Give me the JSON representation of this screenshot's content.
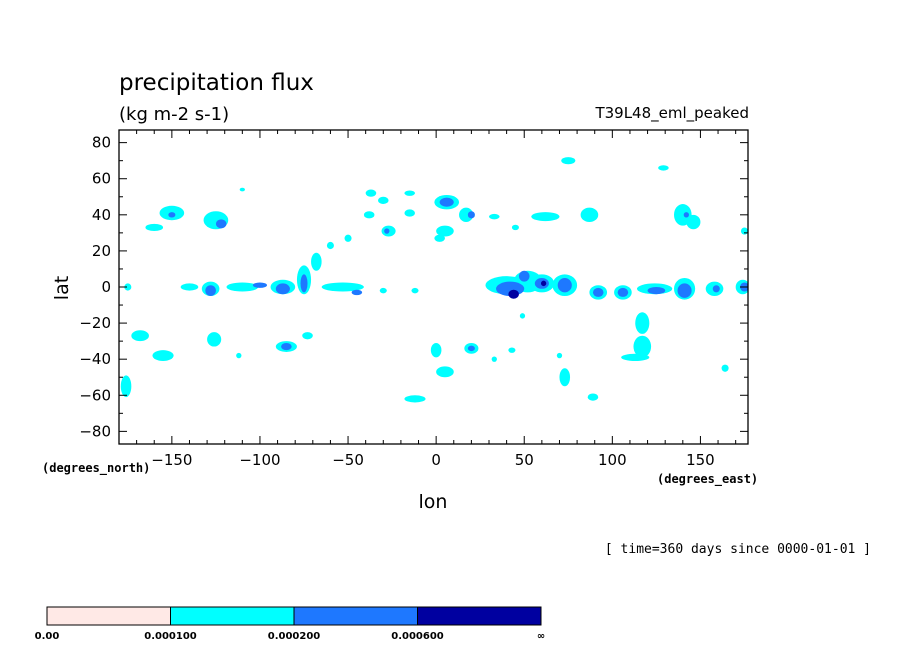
{
  "chart_data": {
    "type": "heatmap",
    "title": "precipitation flux",
    "units": "(kg m-2 s-1)",
    "run_label": "T39L48_eml_peaked",
    "time_label": "[ time=360 days since 0000-01-01 ]",
    "xlabel": "lon",
    "ylabel": "lat",
    "x_units": "(degrees_east)",
    "y_units": "(degrees_north)",
    "xlim": [
      -180,
      177
    ],
    "ylim": [
      -87,
      87
    ],
    "x_ticks": [
      -150,
      -100,
      -50,
      0,
      50,
      100,
      150
    ],
    "x_tick_labels": [
      "−150",
      "−100",
      "−50",
      "0",
      "50",
      "100",
      "150"
    ],
    "y_ticks": [
      80,
      60,
      40,
      20,
      0,
      -20,
      -40,
      -60,
      -80
    ],
    "y_tick_labels": [
      "80",
      "60",
      "40",
      "20",
      "0",
      "−20",
      "−40",
      "−60",
      "−80"
    ],
    "levels": [
      "0.00",
      "0.000100",
      "0.000200",
      "0.000600",
      "∞"
    ],
    "level_colors": [
      "#ffe9e6",
      "#00ffff",
      "#1e78ff",
      "#0000a0"
    ],
    "features": [
      {
        "lon": -176,
        "lat": -55,
        "rx": 3,
        "ry": 6,
        "level": 1
      },
      {
        "lon": -168,
        "lat": -27,
        "rx": 5,
        "ry": 3,
        "level": 1
      },
      {
        "lon": -155,
        "lat": -38,
        "rx": 6,
        "ry": 3,
        "level": 1
      },
      {
        "lon": -160,
        "lat": 33,
        "rx": 5,
        "ry": 2,
        "level": 1
      },
      {
        "lon": -150,
        "lat": 41,
        "rx": 7,
        "ry": 4,
        "level": 1
      },
      {
        "lon": -150,
        "lat": 40,
        "rx": 2,
        "ry": 1.5,
        "level": 2
      },
      {
        "lon": -125,
        "lat": 37,
        "rx": 7,
        "ry": 5,
        "level": 1
      },
      {
        "lon": -122,
        "lat": 35,
        "rx": 3,
        "ry": 2.5,
        "level": 2
      },
      {
        "lon": -140,
        "lat": 0,
        "rx": 5,
        "ry": 2,
        "level": 1
      },
      {
        "lon": -128,
        "lat": -1,
        "rx": 5,
        "ry": 4,
        "level": 1
      },
      {
        "lon": -128,
        "lat": -2,
        "rx": 3,
        "ry": 3,
        "level": 2
      },
      {
        "lon": -126,
        "lat": -29,
        "rx": 4,
        "ry": 4,
        "level": 1
      },
      {
        "lon": -110,
        "lat": 0,
        "rx": 9,
        "ry": 2.5,
        "level": 1
      },
      {
        "lon": -100,
        "lat": 1,
        "rx": 4,
        "ry": 1.5,
        "level": 2
      },
      {
        "lon": -87,
        "lat": 0,
        "rx": 7,
        "ry": 4,
        "level": 1
      },
      {
        "lon": -87,
        "lat": -1,
        "rx": 4,
        "ry": 3,
        "level": 2
      },
      {
        "lon": -85,
        "lat": -33,
        "rx": 6,
        "ry": 3,
        "level": 1
      },
      {
        "lon": -85,
        "lat": -33,
        "rx": 3,
        "ry": 2,
        "level": 2
      },
      {
        "lon": -75,
        "lat": 4,
        "rx": 4,
        "ry": 8,
        "level": 1
      },
      {
        "lon": -75,
        "lat": 2,
        "rx": 2,
        "ry": 5,
        "level": 2
      },
      {
        "lon": -68,
        "lat": 14,
        "rx": 3,
        "ry": 5,
        "level": 1
      },
      {
        "lon": -60,
        "lat": 23,
        "rx": 2,
        "ry": 2,
        "level": 1
      },
      {
        "lon": -73,
        "lat": -27,
        "rx": 3,
        "ry": 2,
        "level": 1
      },
      {
        "lon": -53,
        "lat": 0,
        "rx": 12,
        "ry": 2.5,
        "level": 1
      },
      {
        "lon": -45,
        "lat": -3,
        "rx": 3,
        "ry": 1.5,
        "level": 2
      },
      {
        "lon": -50,
        "lat": 27,
        "rx": 2,
        "ry": 2,
        "level": 1
      },
      {
        "lon": -37,
        "lat": 52,
        "rx": 3,
        "ry": 2,
        "level": 1
      },
      {
        "lon": -30,
        "lat": 48,
        "rx": 3,
        "ry": 2,
        "level": 1
      },
      {
        "lon": -38,
        "lat": 40,
        "rx": 3,
        "ry": 2,
        "level": 1
      },
      {
        "lon": -27,
        "lat": 31,
        "rx": 4,
        "ry": 3,
        "level": 1
      },
      {
        "lon": -28,
        "lat": 31,
        "rx": 1.5,
        "ry": 1.5,
        "level": 2
      },
      {
        "lon": -15,
        "lat": 52,
        "rx": 3,
        "ry": 1.5,
        "level": 1
      },
      {
        "lon": -15,
        "lat": 41,
        "rx": 3,
        "ry": 2,
        "level": 1
      },
      {
        "lon": -30,
        "lat": -2,
        "rx": 2,
        "ry": 1.5,
        "level": 1
      },
      {
        "lon": -12,
        "lat": -2,
        "rx": 2,
        "ry": 1.5,
        "level": 1
      },
      {
        "lon": 6,
        "lat": 47,
        "rx": 7,
        "ry": 4,
        "level": 1
      },
      {
        "lon": 6,
        "lat": 47,
        "rx": 4,
        "ry": 2.5,
        "level": 2
      },
      {
        "lon": 17,
        "lat": 40,
        "rx": 4,
        "ry": 4,
        "level": 1
      },
      {
        "lon": 20,
        "lat": 40,
        "rx": 2,
        "ry": 2,
        "level": 2
      },
      {
        "lon": 5,
        "lat": 31,
        "rx": 5,
        "ry": 3,
        "level": 1
      },
      {
        "lon": 2,
        "lat": 27,
        "rx": 3,
        "ry": 2,
        "level": 1
      },
      {
        "lon": 0,
        "lat": -35,
        "rx": 3,
        "ry": 4,
        "level": 1
      },
      {
        "lon": 5,
        "lat": -47,
        "rx": 5,
        "ry": 3,
        "level": 1
      },
      {
        "lon": -12,
        "lat": -62,
        "rx": 6,
        "ry": 2,
        "level": 1
      },
      {
        "lon": 20,
        "lat": -34,
        "rx": 4,
        "ry": 3,
        "level": 1
      },
      {
        "lon": 20,
        "lat": -34,
        "rx": 2,
        "ry": 1.5,
        "level": 2
      },
      {
        "lon": 33,
        "lat": -40,
        "rx": 1.5,
        "ry": 1.5,
        "level": 1
      },
      {
        "lon": 43,
        "lat": -35,
        "rx": 2,
        "ry": 1.5,
        "level": 1
      },
      {
        "lon": 49,
        "lat": -16,
        "rx": 1.5,
        "ry": 1.5,
        "level": 1
      },
      {
        "lon": 33,
        "lat": 39,
        "rx": 3,
        "ry": 1.5,
        "level": 1
      },
      {
        "lon": 45,
        "lat": 33,
        "rx": 2,
        "ry": 1.5,
        "level": 1
      },
      {
        "lon": 62,
        "lat": 39,
        "rx": 8,
        "ry": 2.5,
        "level": 1
      },
      {
        "lon": 75,
        "lat": 70,
        "rx": 4,
        "ry": 2,
        "level": 1
      },
      {
        "lon": 87,
        "lat": 40,
        "rx": 5,
        "ry": 4,
        "level": 1
      },
      {
        "lon": 40,
        "lat": 1,
        "rx": 12,
        "ry": 5,
        "level": 1
      },
      {
        "lon": 42,
        "lat": -1,
        "rx": 8,
        "ry": 4,
        "level": 2
      },
      {
        "lon": 44,
        "lat": -4,
        "rx": 3,
        "ry": 2.5,
        "level": 3
      },
      {
        "lon": 52,
        "lat": 3,
        "rx": 8,
        "ry": 6,
        "level": 1
      },
      {
        "lon": 50,
        "lat": 6,
        "rx": 3,
        "ry": 3,
        "level": 2
      },
      {
        "lon": 60,
        "lat": 2,
        "rx": 7,
        "ry": 5,
        "level": 1
      },
      {
        "lon": 60,
        "lat": 2,
        "rx": 4,
        "ry": 3,
        "level": 2
      },
      {
        "lon": 61,
        "lat": 2,
        "rx": 1.5,
        "ry": 1.5,
        "level": 3
      },
      {
        "lon": 73,
        "lat": 1,
        "rx": 7,
        "ry": 6,
        "level": 1
      },
      {
        "lon": 73,
        "lat": 1,
        "rx": 4,
        "ry": 4,
        "level": 2
      },
      {
        "lon": 73,
        "lat": -50,
        "rx": 3,
        "ry": 5,
        "level": 1
      },
      {
        "lon": 70,
        "lat": -38,
        "rx": 1.5,
        "ry": 1.5,
        "level": 1
      },
      {
        "lon": 89,
        "lat": -61,
        "rx": 3,
        "ry": 2,
        "level": 1
      },
      {
        "lon": 92,
        "lat": -3,
        "rx": 5,
        "ry": 4,
        "level": 1
      },
      {
        "lon": 92,
        "lat": -3,
        "rx": 3,
        "ry": 2.5,
        "level": 2
      },
      {
        "lon": 106,
        "lat": -3,
        "rx": 5,
        "ry": 4,
        "level": 1
      },
      {
        "lon": 106,
        "lat": -3,
        "rx": 3,
        "ry": 2.5,
        "level": 2
      },
      {
        "lon": 124,
        "lat": -1,
        "rx": 10,
        "ry": 3,
        "level": 1
      },
      {
        "lon": 125,
        "lat": -2,
        "rx": 5,
        "ry": 2,
        "level": 2
      },
      {
        "lon": 141,
        "lat": -1,
        "rx": 6,
        "ry": 6,
        "level": 1
      },
      {
        "lon": 141,
        "lat": -2,
        "rx": 4,
        "ry": 4,
        "level": 2
      },
      {
        "lon": 158,
        "lat": -1,
        "rx": 5,
        "ry": 4,
        "level": 1
      },
      {
        "lon": 159,
        "lat": -1,
        "rx": 2,
        "ry": 2,
        "level": 2
      },
      {
        "lon": 174,
        "lat": 0,
        "rx": 4,
        "ry": 4,
        "level": 1
      },
      {
        "lon": 175,
        "lat": 0,
        "rx": 2.5,
        "ry": 2.5,
        "level": 2
      },
      {
        "lon": 117,
        "lat": -20,
        "rx": 4,
        "ry": 6,
        "level": 1
      },
      {
        "lon": 117,
        "lat": -33,
        "rx": 5,
        "ry": 6,
        "level": 1
      },
      {
        "lon": 113,
        "lat": -39,
        "rx": 8,
        "ry": 2,
        "level": 1
      },
      {
        "lon": 140,
        "lat": 40,
        "rx": 5,
        "ry": 6,
        "level": 1
      },
      {
        "lon": 146,
        "lat": 36,
        "rx": 4,
        "ry": 4,
        "level": 1
      },
      {
        "lon": 142,
        "lat": 40,
        "rx": 1.5,
        "ry": 1.5,
        "level": 2
      },
      {
        "lon": 129,
        "lat": 66,
        "rx": 3,
        "ry": 1.5,
        "level": 1
      },
      {
        "lon": 164,
        "lat": -45,
        "rx": 2,
        "ry": 2,
        "level": 1
      },
      {
        "lon": 175,
        "lat": 31,
        "rx": 2,
        "ry": 2,
        "level": 1
      },
      {
        "lon": -175,
        "lat": 0,
        "rx": 2,
        "ry": 2,
        "level": 1
      },
      {
        "lon": -112,
        "lat": -38,
        "rx": 1.5,
        "ry": 1.5,
        "level": 1
      },
      {
        "lon": -110,
        "lat": 54,
        "rx": 1.5,
        "ry": 1,
        "level": 1
      }
    ]
  }
}
